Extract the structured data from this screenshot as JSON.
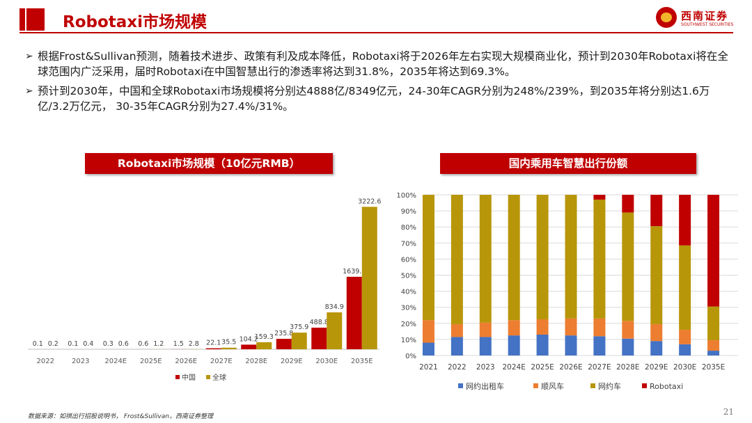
{
  "header": {
    "title": "Robotaxi市场规模",
    "logo_cn": "西南证券",
    "logo_en": "SOUTHWEST SECURITIES"
  },
  "bullets": [
    "根据Frost&Sullivan预测，随着技术进步、政策有利及成本降低，Robotaxi将于2026年左右实现大规模商业化，预计到2030年Robotaxi将在全球范围内广泛采用，届时Robotaxi在中国智慧出行的渗透率将达到31.8%，2035年将达到69.3%。",
    "预计到2030年，中国和全球Robotaxi市场规模将分别达4888亿/8349亿元，24-30年CAGR分别为248%/239%，到2035年将分别达1.6万亿/3.2万亿元， 30-35年CAGR分别为27.4%/31%。"
  ],
  "chart_data": [
    {
      "type": "bar",
      "title": "Robotaxi市场规模（10亿元RMB）",
      "categories": [
        "2022",
        "2023",
        "2024E",
        "2025E",
        "2026E",
        "2027E",
        "2028E",
        "2029E",
        "2030E",
        "2035E"
      ],
      "series": [
        {
          "name": "中国",
          "color": "#c00000",
          "values": [
            0.1,
            0.1,
            0.3,
            0.6,
            1.5,
            22.1,
            104.2,
            235.8,
            488.8,
            1639.6
          ]
        },
        {
          "name": "全球",
          "color": "#b8960a",
          "values": [
            0.2,
            0.4,
            0.6,
            1.2,
            2.8,
            35.5,
            159.3,
            375.9,
            834.9,
            3222.6
          ]
        }
      ],
      "labels": [
        [
          "0.1",
          "0.1",
          "0.3",
          "0.6",
          "1.5",
          "22.1",
          "104.2",
          "235.8",
          "488.8",
          "1639.6"
        ],
        [
          "0.2",
          "0.4",
          "0.6",
          "1.2",
          "2.8",
          "35.5",
          "159.3",
          "375.9",
          "834.9",
          "3222.6"
        ]
      ],
      "ylim": [
        0,
        3400
      ],
      "legend": "bottom"
    },
    {
      "type": "bar",
      "stacked": true,
      "title": "国内乘用车智慧出行份额",
      "categories": [
        "2021",
        "2022",
        "2023",
        "2024E",
        "2025E",
        "2026E",
        "2027E",
        "2028E",
        "2029E",
        "2030E",
        "2035E"
      ],
      "series": [
        {
          "name": "网约出租车",
          "color": "#4472c4",
          "values": [
            8,
            11.5,
            11.5,
            12.5,
            13,
            12.5,
            12,
            10.5,
            9,
            7,
            3
          ]
        },
        {
          "name": "顺风车",
          "color": "#ed7d31",
          "values": [
            14,
            8,
            9,
            9.5,
            9.5,
            10.5,
            11,
            11,
            10.5,
            9,
            6.5
          ]
        },
        {
          "name": "网约车",
          "color": "#b8960a",
          "values": [
            78,
            80.5,
            79.5,
            78,
            77.5,
            77,
            74,
            67.5,
            61,
            52.5,
            21
          ]
        },
        {
          "name": "Robotaxi",
          "color": "#c00000",
          "values": [
            0,
            0,
            0,
            0,
            0,
            0,
            3,
            11,
            19.5,
            31.5,
            69.5
          ]
        }
      ],
      "yticks": [
        "0%",
        "10%",
        "20%",
        "30%",
        "40%",
        "50%",
        "60%",
        "70%",
        "80%",
        "90%",
        "100%"
      ],
      "ylim": [
        0,
        100
      ],
      "legend": "bottom"
    }
  ],
  "footer": {
    "source": "数据来源：如祺出行招股说明书， Frost&Sullivan，西南证券整理",
    "page": "21"
  }
}
